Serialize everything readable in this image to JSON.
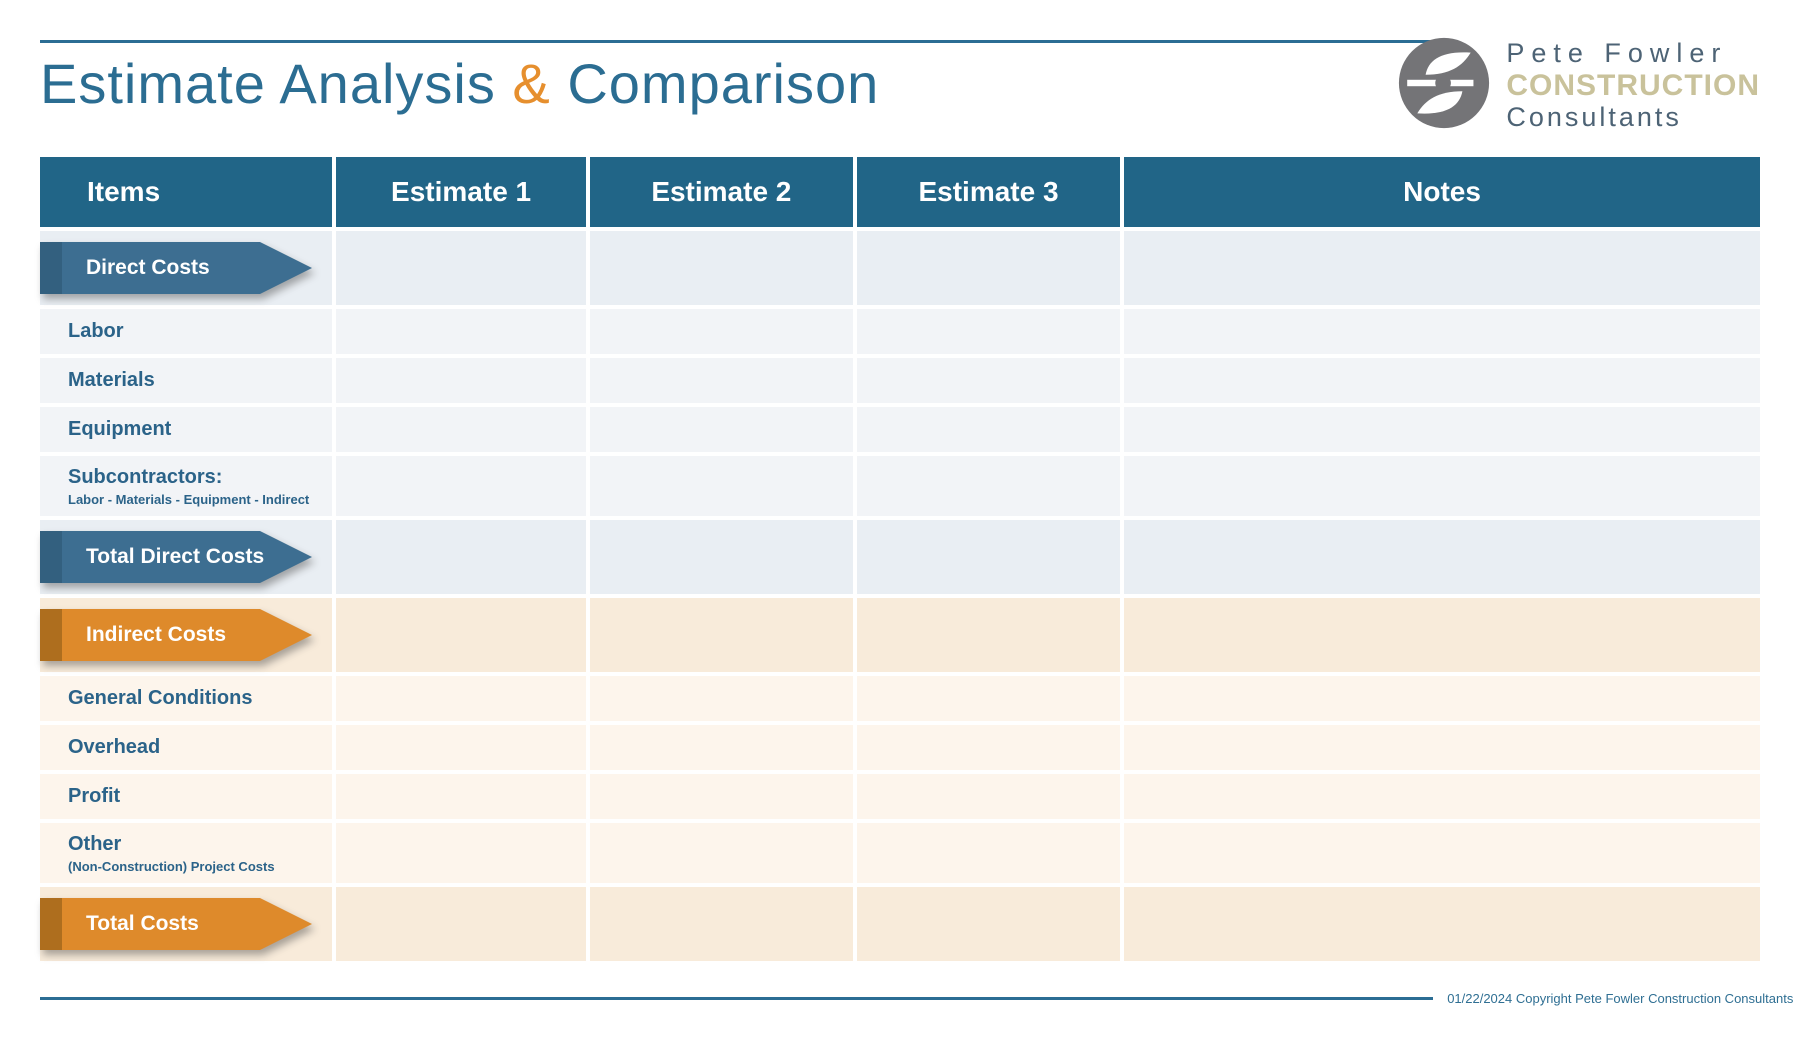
{
  "header": {
    "title_part1": "Estimate Analysis",
    "title_ampersand": "&",
    "title_part2": "Comparison"
  },
  "logo": {
    "mark": "pfcc-monogram-circle",
    "line1": "Pete Fowler",
    "line2": "CONSTRUCTION",
    "line3": "Consultants"
  },
  "colors": {
    "header_bg": "#216587",
    "title_teal": "#2b6d92",
    "ampersand_orange": "#e68f2e",
    "blue_arrow": "#3d6e91",
    "blue_arrow_dark": "#33607f",
    "orange_arrow": "#de8a2b",
    "orange_arrow_dark": "#ae6e1e",
    "blue_section_row": "#e9eef3",
    "blue_item_row": "#f2f4f7",
    "orange_section_row": "#f8ebda",
    "orange_item_row": "#fdf5ec",
    "row_label_text": "#2b6389",
    "rule_line": "#2b6d94",
    "logo_gray": "#747477",
    "logo_slate": "#4d6375",
    "logo_khaki": "#c9c29b",
    "footer_text": "#2f6f93"
  },
  "table": {
    "columns": [
      "Items",
      "Estimate 1",
      "Estimate 2",
      "Estimate 3",
      "Notes"
    ],
    "rows": [
      {
        "kind": "section",
        "theme": "blue",
        "label": "Direct Costs",
        "cells": [
          "",
          "",
          "",
          ""
        ]
      },
      {
        "kind": "item",
        "theme": "blue",
        "label": "Labor",
        "cells": [
          "",
          "",
          "",
          ""
        ]
      },
      {
        "kind": "item",
        "theme": "blue",
        "label": "Materials",
        "cells": [
          "",
          "",
          "",
          ""
        ]
      },
      {
        "kind": "item",
        "theme": "blue",
        "label": "Equipment",
        "cells": [
          "",
          "",
          "",
          ""
        ]
      },
      {
        "kind": "item",
        "theme": "blue",
        "label": "Subcontractors:",
        "sublabel": "Labor - Materials - Equipment - Indirect",
        "cells": [
          "",
          "",
          "",
          ""
        ]
      },
      {
        "kind": "total",
        "theme": "blue",
        "label": "Total Direct Costs",
        "cells": [
          "",
          "",
          "",
          ""
        ]
      },
      {
        "kind": "section",
        "theme": "orange",
        "label": "Indirect Costs",
        "cells": [
          "",
          "",
          "",
          ""
        ]
      },
      {
        "kind": "item",
        "theme": "orange",
        "label": "General Conditions",
        "cells": [
          "",
          "",
          "",
          ""
        ]
      },
      {
        "kind": "item",
        "theme": "orange",
        "label": "Overhead",
        "cells": [
          "",
          "",
          "",
          ""
        ]
      },
      {
        "kind": "item",
        "theme": "orange",
        "label": "Profit",
        "cells": [
          "",
          "",
          "",
          ""
        ]
      },
      {
        "kind": "item",
        "theme": "orange",
        "label": "Other",
        "sublabel": "(Non-Construction) Project Costs",
        "cells": [
          "",
          "",
          "",
          ""
        ]
      },
      {
        "kind": "total",
        "theme": "orange",
        "label": "Total Costs",
        "cells": [
          "",
          "",
          "",
          ""
        ]
      }
    ]
  },
  "footer": {
    "copyright": "01/22/2024 Copyright Pete Fowler Construction Consultants"
  }
}
